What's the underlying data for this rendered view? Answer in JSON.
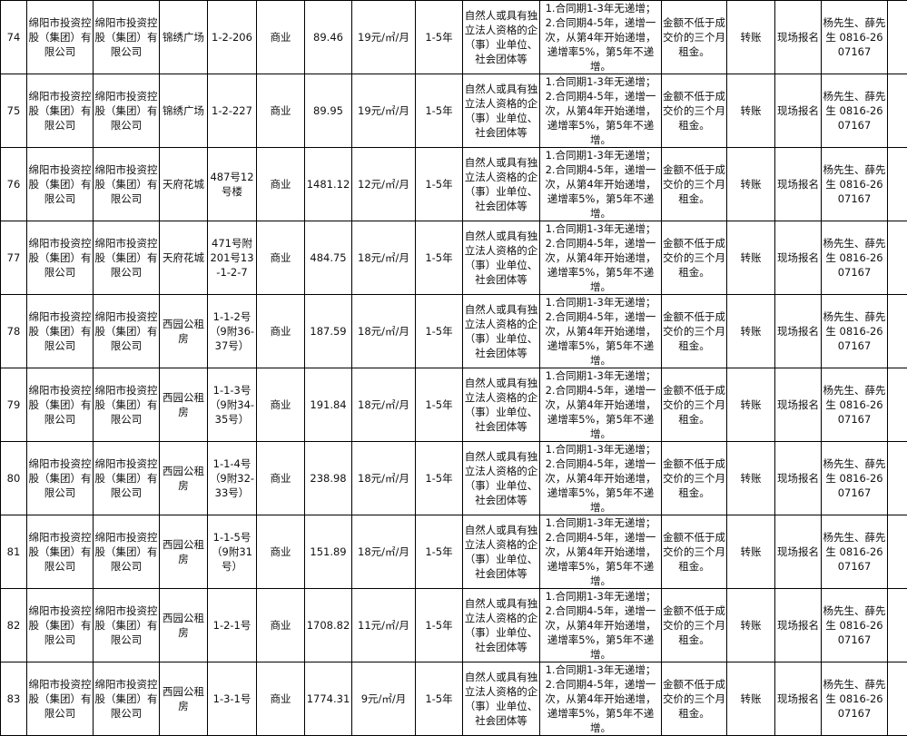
{
  "rows": [
    {
      "no": "74",
      "c1": "绵阳市投资控股（集团）有限公司",
      "c2": "绵阳市投资控股（集团）有限公司",
      "project": "锦绣广场",
      "unit": "1-2-206",
      "use": "商业",
      "area": "89.46",
      "price": "19元/㎡/月",
      "term": "1-5年",
      "qualification": "自然人或具有独立法人资格的企（事）业单位、社会团体等",
      "increase": "1.合同期1-3年无递增；2.合同期4-5年，递增一次，从第4年开始递增，递增率5%，第5年不递增。",
      "deposit": "金额不低于成交价的三个月租金。",
      "payment": "转账",
      "signup": "现场报名",
      "contact": "杨先生、薛先生 0816-2607167"
    },
    {
      "no": "75",
      "c1": "绵阳市投资控股（集团）有限公司",
      "c2": "绵阳市投资控股（集团）有限公司",
      "project": "锦绣广场",
      "unit": "1-2-227",
      "use": "商业",
      "area": "89.95",
      "price": "19元/㎡/月",
      "term": "1-5年",
      "qualification": "自然人或具有独立法人资格的企（事）业单位、社会团体等",
      "increase": "1.合同期1-3年无递增；2.合同期4-5年，递增一次，从第4年开始递增，递增率5%，第5年不递增。",
      "deposit": "金额不低于成交价的三个月租金。",
      "payment": "转账",
      "signup": "现场报名",
      "contact": "杨先生、薛先生 0816-2607167"
    },
    {
      "no": "76",
      "c1": "绵阳市投资控股（集团）有限公司",
      "c2": "绵阳市投资控股（集团）有限公司",
      "project": "天府花城",
      "unit": "487号12号楼",
      "use": "商业",
      "area": "1481.12",
      "price": "12元/㎡/月",
      "term": "1-5年",
      "qualification": "自然人或具有独立法人资格的企（事）业单位、社会团体等",
      "increase": "1.合同期1-3年无递增；2.合同期4-5年，递增一次，从第4年开始递增，递增率5%，第5年不递增。",
      "deposit": "金额不低于成交价的三个月租金。",
      "payment": "转账",
      "signup": "现场报名",
      "contact": "杨先生、薛先生 0816-2607167"
    },
    {
      "no": "77",
      "c1": "绵阳市投资控股（集团）有限公司",
      "c2": "绵阳市投资控股（集团）有限公司",
      "project": "天府花城",
      "unit": "471号附201号13-1-2-7",
      "use": "商业",
      "area": "484.75",
      "price": "18元/㎡/月",
      "term": "1-5年",
      "qualification": "自然人或具有独立法人资格的企（事）业单位、社会团体等",
      "increase": "1.合同期1-3年无递增；2.合同期4-5年，递增一次，从第4年开始递增，递增率5%，第5年不递增。",
      "deposit": "金额不低于成交价的三个月租金。",
      "payment": "转账",
      "signup": "现场报名",
      "contact": "杨先生、薛先生 0816-2607167"
    },
    {
      "no": "78",
      "c1": "绵阳市投资控股（集团）有限公司",
      "c2": "绵阳市投资控股（集团）有限公司",
      "project": "西园公租房",
      "unit": "1-1-2号（9附36-37号）",
      "use": "商业",
      "area": "187.59",
      "price": "18元/㎡/月",
      "term": "1-5年",
      "qualification": "自然人或具有独立法人资格的企（事）业单位、社会团体等",
      "increase": "1.合同期1-3年无递增；2.合同期4-5年，递增一次，从第4年开始递增，递增率5%，第5年不递增。",
      "deposit": "金额不低于成交价的三个月租金。",
      "payment": "转账",
      "signup": "现场报名",
      "contact": "杨先生、薛先生 0816-2607167"
    },
    {
      "no": "79",
      "c1": "绵阳市投资控股（集团）有限公司",
      "c2": "绵阳市投资控股（集团）有限公司",
      "project": "西园公租房",
      "unit": "1-1-3号（9附34-35号）",
      "use": "商业",
      "area": "191.84",
      "price": "18元/㎡/月",
      "term": "1-5年",
      "qualification": "自然人或具有独立法人资格的企（事）业单位、社会团体等",
      "increase": "1.合同期1-3年无递增；2.合同期4-5年，递增一次，从第4年开始递增，递增率5%，第5年不递增。",
      "deposit": "金额不低于成交价的三个月租金。",
      "payment": "转账",
      "signup": "现场报名",
      "contact": "杨先生、薛先生 0816-2607167"
    },
    {
      "no": "80",
      "c1": "绵阳市投资控股（集团）有限公司",
      "c2": "绵阳市投资控股（集团）有限公司",
      "project": "西园公租房",
      "unit": "1-1-4号（9附32-33号）",
      "use": "商业",
      "area": "238.98",
      "price": "18元/㎡/月",
      "term": "1-5年",
      "qualification": "自然人或具有独立法人资格的企（事）业单位、社会团体等",
      "increase": "1.合同期1-3年无递增；2.合同期4-5年，递增一次，从第4年开始递增，递增率5%，第5年不递增。",
      "deposit": "金额不低于成交价的三个月租金。",
      "payment": "转账",
      "signup": "现场报名",
      "contact": "杨先生、薛先生 0816-2607167"
    },
    {
      "no": "81",
      "c1": "绵阳市投资控股（集团）有限公司",
      "c2": "绵阳市投资控股（集团）有限公司",
      "project": "西园公租房",
      "unit": "1-1-5号（9附31号）",
      "use": "商业",
      "area": "151.89",
      "price": "18元/㎡/月",
      "term": "1-5年",
      "qualification": "自然人或具有独立法人资格的企（事）业单位、社会团体等",
      "increase": "1.合同期1-3年无递增；2.合同期4-5年，递增一次，从第4年开始递增，递增率5%，第5年不递增。",
      "deposit": "金额不低于成交价的三个月租金。",
      "payment": "转账",
      "signup": "现场报名",
      "contact": "杨先生、薛先生 0816-2607167"
    },
    {
      "no": "82",
      "c1": "绵阳市投资控股（集团）有限公司",
      "c2": "绵阳市投资控股（集团）有限公司",
      "project": "西园公租房",
      "unit": "1-2-1号",
      "use": "商业",
      "area": "1708.82",
      "price": "11元/㎡/月",
      "term": "1-5年",
      "qualification": "自然人或具有独立法人资格的企（事）业单位、社会团体等",
      "increase": "1.合同期1-3年无递增；2.合同期4-5年，递增一次，从第4年开始递增，递增率5%，第5年不递增。",
      "deposit": "金额不低于成交价的三个月租金。",
      "payment": "转账",
      "signup": "现场报名",
      "contact": "杨先生、薛先生 0816-2607167"
    },
    {
      "no": "83",
      "c1": "绵阳市投资控股（集团）有限公司",
      "c2": "绵阳市投资控股（集团）有限公司",
      "project": "西园公租房",
      "unit": "1-3-1号",
      "use": "商业",
      "area": "1774.31",
      "price": "9元/㎡/月",
      "term": "1-5年",
      "qualification": "自然人或具有独立法人资格的企（事）业单位、社会团体等",
      "increase": "1.合同期1-3年无递增；2.合同期4-5年，递增一次，从第4年开始递增，递增率5%，第5年不递增。",
      "deposit": "金额不低于成交价的三个月租金。",
      "payment": "转账",
      "signup": "现场报名",
      "contact": "杨先生、薛先生 0816-2607167"
    }
  ]
}
